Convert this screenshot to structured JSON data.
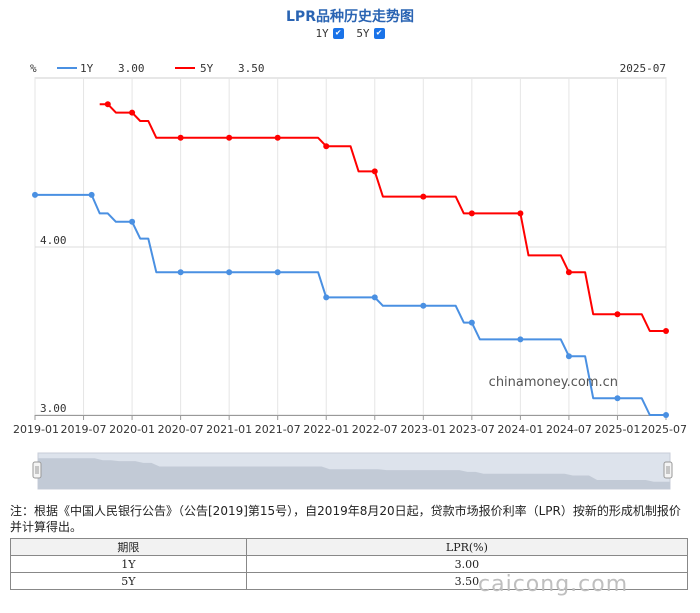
{
  "header": {
    "title": "LPR品种历史走势图",
    "toggles": [
      {
        "label": "1Y",
        "checked": true
      },
      {
        "label": "5Y",
        "checked": true
      }
    ]
  },
  "legend": {
    "unit": "%",
    "latest_date": "2025-07",
    "items": [
      {
        "label": "1Y",
        "value": "3.00",
        "color": "#4a90e2"
      },
      {
        "label": "5Y",
        "value": "3.50",
        "color": "#ff0000"
      }
    ]
  },
  "watermark": "chinamoney.com.cn",
  "chart_data": {
    "type": "line",
    "x_ticks": [
      "2019-01",
      "2019-07",
      "2020-01",
      "2020-07",
      "2021-01",
      "2021-07",
      "2022-01",
      "2022-07",
      "2023-01",
      "2023-07",
      "2024-01",
      "2024-07",
      "2025-01",
      "2025-07"
    ],
    "y_ticks": [
      "3.00",
      "4.00"
    ],
    "ylim": [
      3.0,
      5.0
    ],
    "series": [
      {
        "name": "1Y",
        "color": "#4a90e2",
        "steps": [
          [
            "2019-01",
            4.31
          ],
          [
            "2019-08",
            4.31
          ],
          [
            "2019-09",
            4.2
          ],
          [
            "2019-10",
            4.2
          ],
          [
            "2019-11",
            4.15
          ],
          [
            "2020-01",
            4.15
          ],
          [
            "2020-02",
            4.05
          ],
          [
            "2020-03",
            4.05
          ],
          [
            "2020-04",
            3.85
          ],
          [
            "2021-12",
            3.85
          ],
          [
            "2022-01",
            3.7
          ],
          [
            "2022-07",
            3.7
          ],
          [
            "2022-08",
            3.65
          ],
          [
            "2023-05",
            3.65
          ],
          [
            "2023-06",
            3.55
          ],
          [
            "2023-07",
            3.55
          ],
          [
            "2023-08",
            3.45
          ],
          [
            "2024-06",
            3.45
          ],
          [
            "2024-07",
            3.35
          ],
          [
            "2024-09",
            3.35
          ],
          [
            "2024-10",
            3.1
          ],
          [
            "2025-04",
            3.1
          ],
          [
            "2025-05",
            3.0
          ],
          [
            "2025-07",
            3.0
          ]
        ],
        "markers": [
          "2019-01",
          "2019-08",
          "2020-01",
          "2020-07",
          "2021-01",
          "2021-07",
          "2022-01",
          "2022-07",
          "2023-01",
          "2023-07",
          "2024-01",
          "2024-07",
          "2025-01",
          "2025-07"
        ]
      },
      {
        "name": "5Y",
        "color": "#ff0000",
        "steps": [
          [
            "2019-09",
            4.85
          ],
          [
            "2019-10",
            4.85
          ],
          [
            "2019-11",
            4.8
          ],
          [
            "2020-01",
            4.8
          ],
          [
            "2020-02",
            4.75
          ],
          [
            "2020-03",
            4.75
          ],
          [
            "2020-04",
            4.65
          ],
          [
            "2021-12",
            4.65
          ],
          [
            "2022-01",
            4.6
          ],
          [
            "2022-04",
            4.6
          ],
          [
            "2022-05",
            4.45
          ],
          [
            "2022-07",
            4.45
          ],
          [
            "2022-08",
            4.3
          ],
          [
            "2023-05",
            4.3
          ],
          [
            "2023-06",
            4.2
          ],
          [
            "2024-01",
            4.2
          ],
          [
            "2024-02",
            3.95
          ],
          [
            "2024-06",
            3.95
          ],
          [
            "2024-07",
            3.85
          ],
          [
            "2024-09",
            3.85
          ],
          [
            "2024-10",
            3.6
          ],
          [
            "2025-04",
            3.6
          ],
          [
            "2025-05",
            3.5
          ],
          [
            "2025-07",
            3.5
          ]
        ],
        "markers": [
          "2019-10",
          "2020-01",
          "2020-07",
          "2021-01",
          "2021-07",
          "2022-01",
          "2022-07",
          "2023-01",
          "2023-07",
          "2024-01",
          "2024-07",
          "2025-01",
          "2025-07"
        ]
      }
    ]
  },
  "note": "注：根据《中国人民银行公告》（公告[2019]第15号），自2019年8月20日起，贷款市场报价利率（LPR）按新的形成机制报价并计算得出。",
  "table": {
    "headers": [
      "期限",
      "LPR(%)"
    ],
    "rows": [
      [
        "1Y",
        "3.00"
      ],
      [
        "5Y",
        "3.50"
      ]
    ]
  },
  "bottom_watermark": "caicong.com"
}
